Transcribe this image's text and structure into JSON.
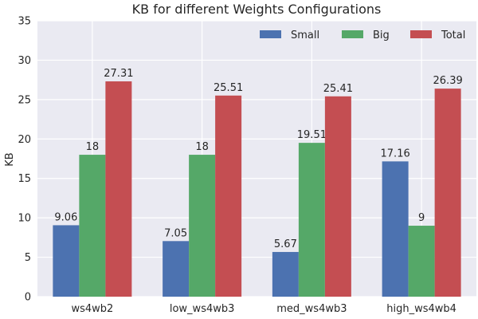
{
  "chart_data": {
    "type": "bar",
    "title": "KB for different Weights Configurations",
    "xlabel": "",
    "ylabel": "KB",
    "categories": [
      "ws4wb2",
      "low_ws4wb3",
      "med_ws4wb3",
      "high_ws4wb4"
    ],
    "series": [
      {
        "name": "Small",
        "color": "#4c72b0",
        "values": [
          9.06,
          7.05,
          5.67,
          17.16
        ]
      },
      {
        "name": "Big",
        "color": "#55a868",
        "values": [
          18,
          18,
          19.51,
          9
        ]
      },
      {
        "name": "Total",
        "color": "#c44e52",
        "values": [
          27.31,
          25.51,
          25.41,
          26.39
        ]
      }
    ],
    "ylim": [
      0,
      35
    ],
    "yticks": [
      0,
      5,
      10,
      15,
      20,
      25,
      30,
      35
    ],
    "grid": true,
    "legend_position": "top-right",
    "background_color": "#eaeaf2"
  }
}
